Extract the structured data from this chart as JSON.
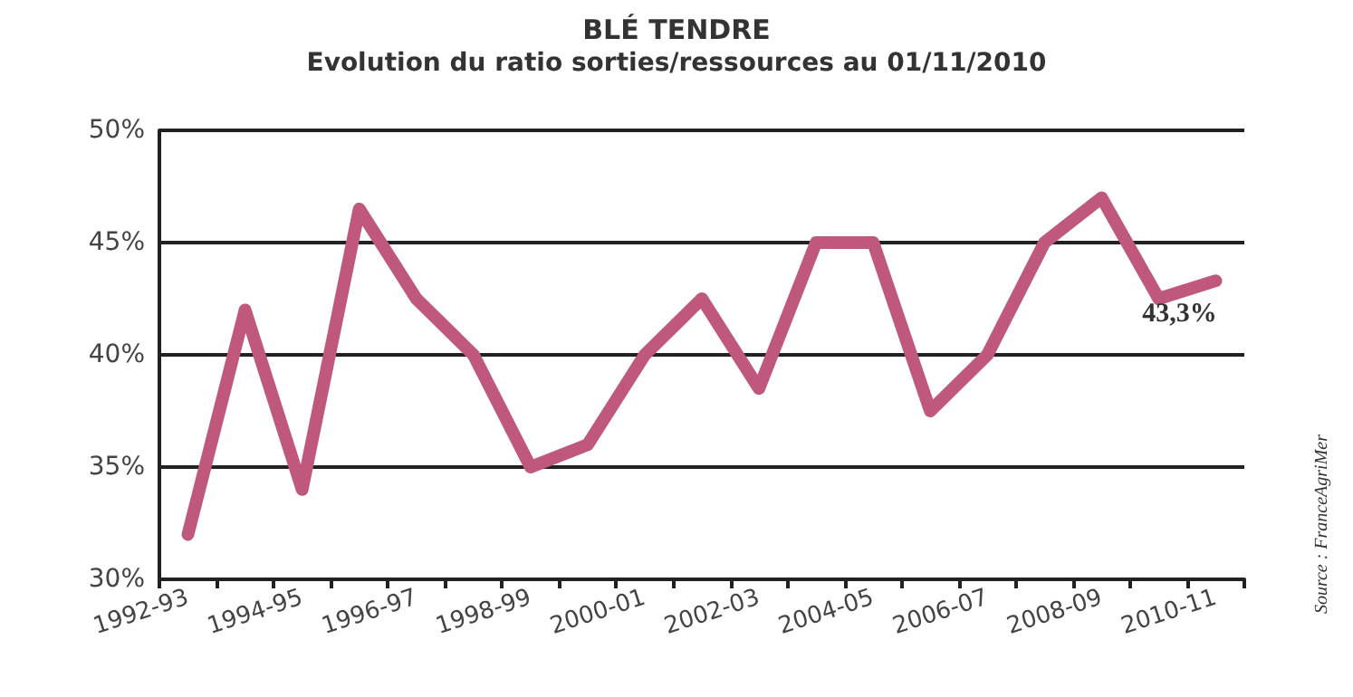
{
  "chart_data": {
    "type": "line",
    "title": "BLÉ TENDRE",
    "subtitle": "Evolution du ratio sorties/ressources au 01/11/2010",
    "categories": [
      "1992-93",
      null,
      "1994-95",
      null,
      "1996-97",
      null,
      "1998-99",
      null,
      "2000-01",
      null,
      "2002-03",
      null,
      "2004-05",
      null,
      "2006-07",
      null,
      "2008-09",
      null,
      "2010-11"
    ],
    "series": [
      {
        "color": "#c0587e",
        "values": [
          32,
          42,
          34,
          46.5,
          42.5,
          40,
          35,
          36,
          40,
          42.5,
          38.5,
          45,
          45,
          37.5,
          40,
          45,
          47,
          42.5,
          43.3
        ],
        "value_labels": [
          null,
          null,
          null,
          null,
          null,
          null,
          null,
          null,
          null,
          null,
          null,
          null,
          null,
          null,
          null,
          null,
          null,
          null,
          "43,3%"
        ]
      }
    ],
    "ylim": [
      30,
      50
    ],
    "yticks": [
      {
        "value": 30,
        "label": "30%"
      },
      {
        "value": 35,
        "label": "35%"
      },
      {
        "value": 40,
        "label": "40%"
      },
      {
        "value": 45,
        "label": "45%"
      },
      {
        "value": 50,
        "label": "50%"
      }
    ],
    "grid": "y",
    "marker": "none",
    "line_style": "solid",
    "annotations": [
      "Source : FranceAgriMer"
    ]
  }
}
